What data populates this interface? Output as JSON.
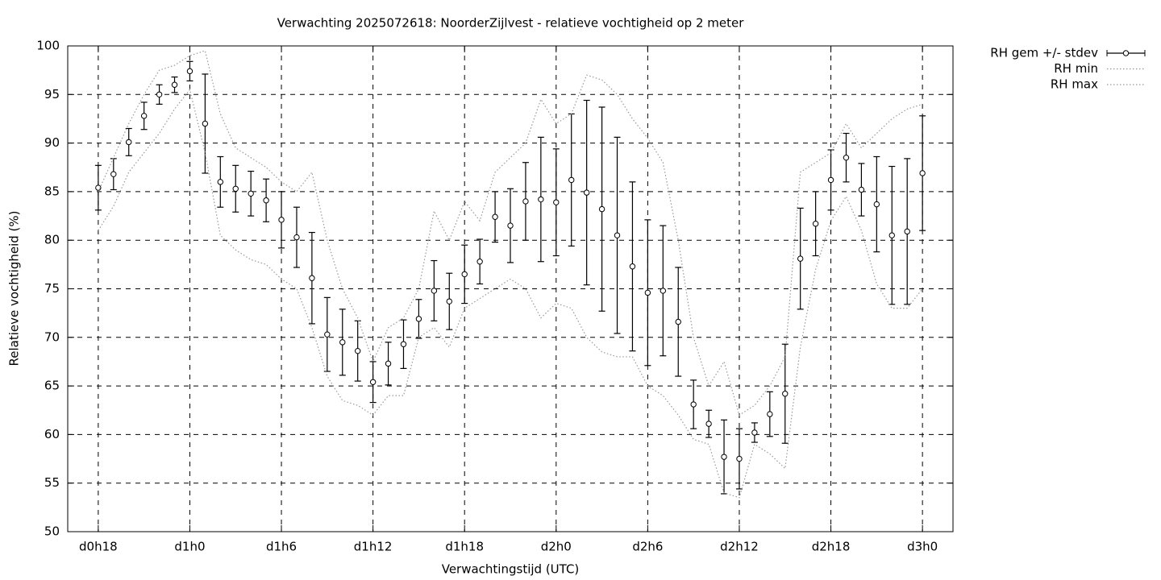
{
  "chart_data": {
    "type": "errorbar",
    "title": "Verwachting 2025072618: NoorderZijlvest - relatieve vochtigheid op 2 meter",
    "x_label": "Verwachtingstijd (UTC)",
    "y_label": "Relatieve vochtigheid (%)",
    "x": [
      18,
      19,
      20,
      21,
      22,
      23,
      24,
      25,
      26,
      27,
      28,
      29,
      30,
      31,
      32,
      33,
      34,
      35,
      36,
      37,
      38,
      39,
      40,
      41,
      42,
      43,
      44,
      45,
      46,
      47,
      48,
      49,
      50,
      51,
      52,
      53,
      54,
      55,
      56,
      57,
      58,
      59,
      60,
      61,
      62,
      63,
      64,
      65,
      66,
      67,
      68,
      69,
      70,
      71,
      72
    ],
    "series": [
      {
        "name": "RH gem +/- stdev",
        "color": "#000000",
        "line_style": "solid",
        "values": [
          85.4,
          86.8,
          90.1,
          92.8,
          95.0,
          96.0,
          97.4,
          92.0,
          86.0,
          85.3,
          84.8,
          84.1,
          82.1,
          80.3,
          76.1,
          70.3,
          69.5,
          68.6,
          65.4,
          67.3,
          69.3,
          71.9,
          74.8,
          73.7,
          76.5,
          77.8,
          82.4,
          81.5,
          84.0,
          84.2,
          83.9,
          86.2,
          84.9,
          83.2,
          80.5,
          77.3,
          74.6,
          74.8,
          71.6,
          63.1,
          61.1,
          57.7,
          57.5,
          60.2,
          62.1,
          64.2,
          78.1,
          81.7,
          86.2,
          88.5,
          85.2,
          83.7,
          80.5,
          80.9,
          86.9
        ],
        "errors": [
          2.3,
          1.6,
          1.4,
          1.4,
          1.0,
          0.8,
          1.0,
          5.1,
          2.6,
          2.4,
          2.3,
          2.2,
          2.9,
          3.1,
          4.7,
          3.8,
          3.4,
          3.1,
          2.1,
          2.2,
          2.5,
          2.0,
          3.1,
          2.9,
          3.0,
          2.3,
          2.6,
          3.8,
          4.0,
          6.4,
          5.5,
          6.8,
          9.5,
          10.5,
          10.1,
          8.7,
          7.5,
          6.7,
          5.6,
          2.5,
          1.4,
          3.8,
          3.1,
          1.0,
          2.3,
          5.1,
          5.2,
          3.3,
          3.1,
          2.5,
          2.7,
          4.9,
          7.1,
          7.5,
          5.9
        ]
      },
      {
        "name": "RH min",
        "color": "#999999",
        "line_style": "dotted",
        "values": [
          81,
          83.5,
          87,
          89,
          91,
          93.5,
          95.5,
          89,
          80.5,
          79,
          78,
          77.5,
          76,
          75,
          71,
          66,
          63.5,
          63,
          62,
          64,
          64,
          70,
          71,
          69,
          73,
          74,
          75,
          76,
          75,
          72,
          73.5,
          73,
          70,
          68.5,
          68,
          68,
          65,
          64,
          62,
          59.5,
          59,
          54,
          53.5,
          59,
          58,
          56.5,
          69,
          77,
          82,
          84.5,
          81,
          75.5,
          73,
          73,
          75
        ]
      },
      {
        "name": "RH max",
        "color": "#999999",
        "line_style": "dotted",
        "values": [
          85,
          88.5,
          92,
          95,
          97.5,
          98,
          99,
          99.5,
          93,
          89.5,
          88.5,
          87.5,
          86,
          85,
          87,
          80,
          75,
          72,
          67.5,
          71,
          72,
          75,
          83,
          80,
          84,
          82,
          87,
          88.5,
          90,
          94.5,
          92,
          93,
          97,
          96.5,
          95,
          92.5,
          90.5,
          88,
          80,
          70,
          65,
          67.5,
          62,
          63,
          65,
          68,
          87,
          88,
          89,
          92,
          89.5,
          91,
          92.5,
          93.5,
          94
        ]
      }
    ],
    "xlim": [
      16,
      74
    ],
    "xticks": [
      {
        "value": 18,
        "label": "d0h18"
      },
      {
        "value": 24,
        "label": "d1h0"
      },
      {
        "value": 30,
        "label": "d1h6"
      },
      {
        "value": 36,
        "label": "d1h12"
      },
      {
        "value": 42,
        "label": "d1h18"
      },
      {
        "value": 48,
        "label": "d2h0"
      },
      {
        "value": 54,
        "label": "d2h6"
      },
      {
        "value": 60,
        "label": "d2h12"
      },
      {
        "value": 66,
        "label": "d2h18"
      },
      {
        "value": 72,
        "label": "d3h0"
      }
    ],
    "ylim": [
      50,
      100
    ],
    "yticks": [
      50,
      55,
      60,
      65,
      70,
      75,
      80,
      85,
      90,
      95,
      100
    ],
    "grid": true,
    "legend_position": "right"
  }
}
